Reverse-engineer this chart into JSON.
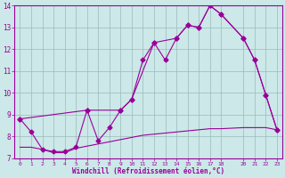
{
  "title": "Windchill (Refroidissement éolien,°C)",
  "bg_color": "#cce8e8",
  "line_color": "#990099",
  "grid_color": "#99bbbb",
  "xlim": [
    -0.5,
    23.5
  ],
  "ylim": [
    7,
    14
  ],
  "xticks": [
    0,
    1,
    2,
    3,
    4,
    5,
    6,
    7,
    8,
    9,
    10,
    11,
    12,
    13,
    14,
    15,
    16,
    17,
    18,
    20,
    21,
    22,
    23
  ],
  "yticks": [
    7,
    8,
    9,
    10,
    11,
    12,
    13,
    14
  ],
  "line1_x": [
    0,
    1,
    2,
    3,
    4,
    5,
    6,
    7,
    8,
    9,
    10,
    11,
    12,
    13,
    14,
    15,
    16,
    17,
    18,
    20,
    21,
    22,
    23
  ],
  "line1_y": [
    8.8,
    8.2,
    7.4,
    7.3,
    7.3,
    7.5,
    9.2,
    7.8,
    8.4,
    9.2,
    9.7,
    11.5,
    12.3,
    11.5,
    12.5,
    13.1,
    13.0,
    14.0,
    13.6,
    12.5,
    11.5,
    9.9,
    8.3
  ],
  "line2_x": [
    0,
    6,
    9,
    10,
    12,
    14,
    15,
    16,
    17,
    18,
    20,
    21,
    22,
    23
  ],
  "line2_y": [
    8.8,
    9.2,
    9.2,
    9.7,
    12.3,
    12.5,
    13.1,
    13.0,
    14.0,
    13.6,
    12.5,
    11.5,
    9.9,
    8.3
  ],
  "line3_x": [
    0,
    1,
    2,
    3,
    4,
    5,
    6,
    7,
    8,
    9,
    10,
    11,
    12,
    13,
    14,
    15,
    16,
    17,
    18,
    20,
    21,
    22,
    23
  ],
  "line3_y": [
    7.5,
    7.5,
    7.4,
    7.25,
    7.25,
    7.45,
    7.55,
    7.65,
    7.75,
    7.85,
    7.95,
    8.05,
    8.1,
    8.15,
    8.2,
    8.25,
    8.3,
    8.35,
    8.35,
    8.4,
    8.4,
    8.4,
    8.3
  ]
}
